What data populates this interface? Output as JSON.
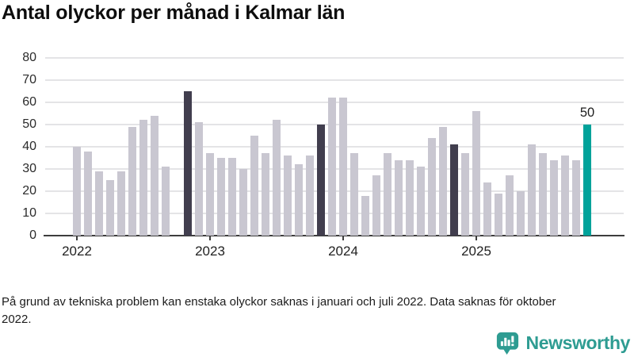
{
  "title": "Antal olyckor per månad i Kalmar län",
  "footnote": "På grund av tekniska problem kan enstaka olyckor saknas i januari och juli 2022. Data saknas för oktober 2022.",
  "brand": {
    "name": "Newsworthy",
    "icon": "newsworthy-speech-bubble-chart-icon",
    "color": "#2E9C92"
  },
  "colors": {
    "bar_default": "#C9C7D1",
    "bar_highlight_dark": "#413E4E",
    "bar_highlight_teal": "#00A29A",
    "gridline": "#E4E4E6",
    "axis": "#3D3D3D",
    "title_text": "#0D0D0D",
    "tick_text": "#2B2B2B"
  },
  "chart_data": {
    "type": "bar",
    "title": "Antal olyckor per månad i Kalmar län",
    "xlabel": "",
    "ylabel": "",
    "ylim": [
      0,
      80
    ],
    "y_ticks": [
      0,
      10,
      20,
      30,
      40,
      50,
      60,
      70,
      80
    ],
    "x_tick_labels": [
      "2022",
      "2023",
      "2024",
      "2025"
    ],
    "grid": "horizontal",
    "legend": "none",
    "missing_months": [
      "2022-10"
    ],
    "highlight_dark_months": [
      "2022-11",
      "2023-11",
      "2024-11"
    ],
    "highlight_teal_month": "2025-11",
    "annotation": {
      "text": "50",
      "month": "2025-11"
    },
    "series": [
      {
        "name": "Antal olyckor",
        "points": [
          {
            "month": "2022-01",
            "value": 40,
            "style": "default"
          },
          {
            "month": "2022-02",
            "value": 38,
            "style": "default"
          },
          {
            "month": "2022-03",
            "value": 29,
            "style": "default"
          },
          {
            "month": "2022-04",
            "value": 25,
            "style": "default"
          },
          {
            "month": "2022-05",
            "value": 29,
            "style": "default"
          },
          {
            "month": "2022-06",
            "value": 49,
            "style": "default"
          },
          {
            "month": "2022-07",
            "value": 52,
            "style": "default"
          },
          {
            "month": "2022-08",
            "value": 54,
            "style": "default"
          },
          {
            "month": "2022-09",
            "value": 31,
            "style": "default"
          },
          {
            "month": "2022-10",
            "value": null,
            "style": "missing"
          },
          {
            "month": "2022-11",
            "value": 65,
            "style": "dark"
          },
          {
            "month": "2022-12",
            "value": 51,
            "style": "default"
          },
          {
            "month": "2023-01",
            "value": 37,
            "style": "default"
          },
          {
            "month": "2023-02",
            "value": 35,
            "style": "default"
          },
          {
            "month": "2023-03",
            "value": 35,
            "style": "default"
          },
          {
            "month": "2023-04",
            "value": 30,
            "style": "default"
          },
          {
            "month": "2023-05",
            "value": 45,
            "style": "default"
          },
          {
            "month": "2023-06",
            "value": 37,
            "style": "default"
          },
          {
            "month": "2023-07",
            "value": 52,
            "style": "default"
          },
          {
            "month": "2023-08",
            "value": 36,
            "style": "default"
          },
          {
            "month": "2023-09",
            "value": 32,
            "style": "default"
          },
          {
            "month": "2023-10",
            "value": 36,
            "style": "default"
          },
          {
            "month": "2023-11",
            "value": 50,
            "style": "dark"
          },
          {
            "month": "2023-12",
            "value": 62,
            "style": "default"
          },
          {
            "month": "2024-01",
            "value": 62,
            "style": "default"
          },
          {
            "month": "2024-02",
            "value": 37,
            "style": "default"
          },
          {
            "month": "2024-03",
            "value": 18,
            "style": "default"
          },
          {
            "month": "2024-04",
            "value": 27,
            "style": "default"
          },
          {
            "month": "2024-05",
            "value": 37,
            "style": "default"
          },
          {
            "month": "2024-06",
            "value": 34,
            "style": "default"
          },
          {
            "month": "2024-07",
            "value": 34,
            "style": "default"
          },
          {
            "month": "2024-08",
            "value": 31,
            "style": "default"
          },
          {
            "month": "2024-09",
            "value": 44,
            "style": "default"
          },
          {
            "month": "2024-10",
            "value": 49,
            "style": "default"
          },
          {
            "month": "2024-11",
            "value": 41,
            "style": "dark"
          },
          {
            "month": "2024-12",
            "value": 37,
            "style": "default"
          },
          {
            "month": "2025-01",
            "value": 56,
            "style": "default"
          },
          {
            "month": "2025-02",
            "value": 24,
            "style": "default"
          },
          {
            "month": "2025-03",
            "value": 19,
            "style": "default"
          },
          {
            "month": "2025-04",
            "value": 27,
            "style": "default"
          },
          {
            "month": "2025-05",
            "value": 20,
            "style": "default"
          },
          {
            "month": "2025-06",
            "value": 41,
            "style": "default"
          },
          {
            "month": "2025-07",
            "value": 37,
            "style": "default"
          },
          {
            "month": "2025-08",
            "value": 34,
            "style": "default"
          },
          {
            "month": "2025-09",
            "value": 36,
            "style": "default"
          },
          {
            "month": "2025-10",
            "value": 34,
            "style": "default"
          },
          {
            "month": "2025-11",
            "value": 50,
            "style": "teal"
          }
        ]
      }
    ]
  }
}
